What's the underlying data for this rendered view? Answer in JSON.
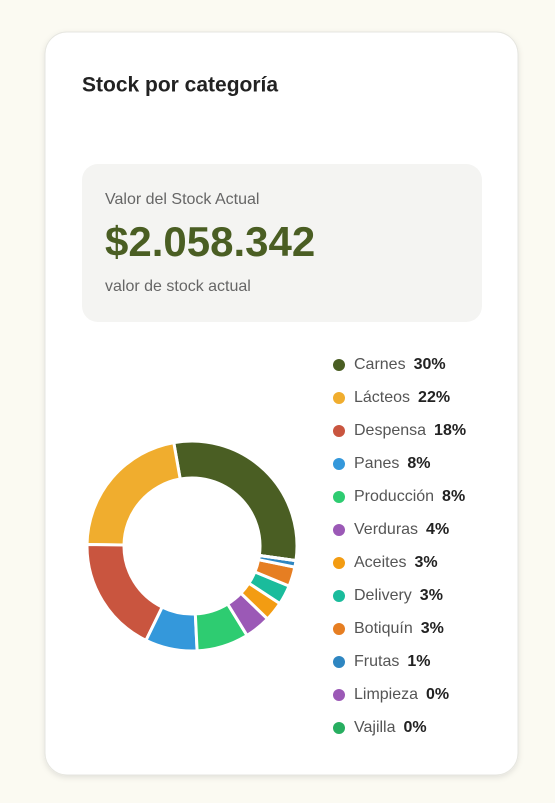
{
  "chart_data": {
    "type": "pie",
    "title": "Stock por categoría",
    "categories": [
      "Carnes",
      "Lácteos",
      "Despensa",
      "Panes",
      "Producción",
      "Verduras",
      "Aceites",
      "Delivery",
      "Botiquín",
      "Frutas",
      "Limpieza",
      "Vajilla"
    ],
    "values": [
      30,
      22,
      18,
      8,
      8,
      4,
      3,
      3,
      3,
      1,
      0,
      0
    ],
    "value_labels": [
      "30%",
      "22%",
      "18%",
      "8%",
      "8%",
      "4%",
      "3%",
      "3%",
      "3%",
      "1%",
      "0%",
      "0%"
    ],
    "colors": [
      "#4a5e23",
      "#f0ad2e",
      "#c9553f",
      "#3498db",
      "#2ecc71",
      "#9b59b6",
      "#f39c12",
      "#1abc9c",
      "#e67e22",
      "#2e86c1",
      "#9b59b6",
      "#27ae60"
    ]
  },
  "summary": {
    "label": "Valor del Stock Actual",
    "value": "$2.058.342",
    "caption": "valor de stock actual"
  }
}
